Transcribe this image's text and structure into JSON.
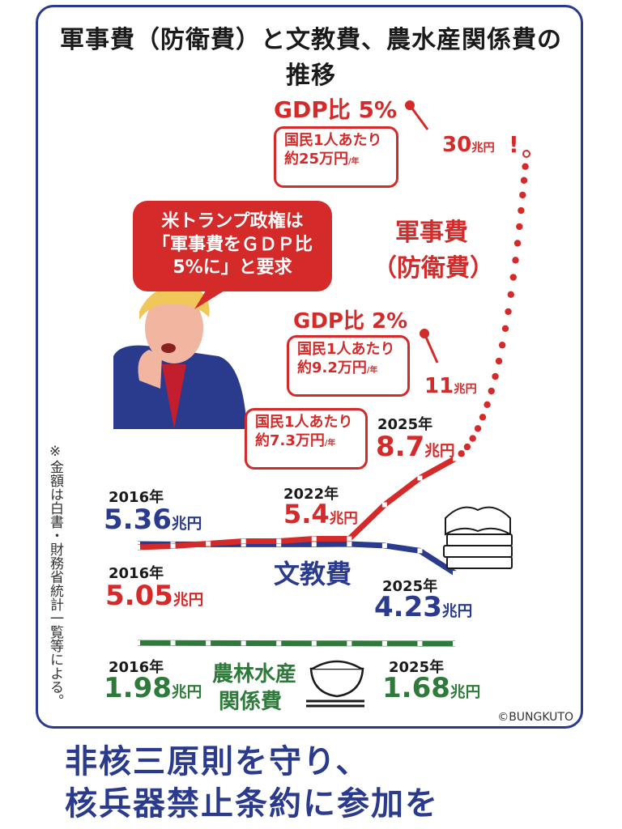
{
  "title": "軍事費（防衛費）と文教費、農水産関係費の推移",
  "note": "※金額は白書・財務省統計一覧等による。",
  "credit": "©BUNGKUTO",
  "slogan": [
    "非核三原則を守り、",
    "核兵器禁止条約に参加を"
  ],
  "speech_bubble": [
    "米トランプ政権は",
    "「軍事費をＧＤＰ比",
    "5%に」と要求"
  ],
  "colors": {
    "military": "#d42a2a",
    "education": "#2a3a8c",
    "agriculture": "#2e7a3a",
    "frame": "#2a3a8c"
  },
  "icons": [
    "trump-caricature-icon",
    "books-icon",
    "rice-bowl-icon",
    "chopsticks-icon"
  ],
  "chart_data": {
    "type": "line",
    "unit": "兆円",
    "series": [
      {
        "name": "軍事費（防衛費）",
        "x": [
          "2016",
          "2017",
          "2018",
          "2019",
          "2020",
          "2021",
          "2022",
          "2023",
          "2024",
          "2025"
        ],
        "values": [
          5.05,
          5.1,
          5.2,
          5.3,
          5.3,
          5.4,
          5.4,
          6.8,
          7.9,
          8.7
        ],
        "projection": [
          {
            "label": "GDP比 2%",
            "value": 11
          },
          {
            "label": "GDP比 5%",
            "value": 30
          }
        ]
      },
      {
        "name": "文教費",
        "x": [
          "2016",
          "2017",
          "2018",
          "2019",
          "2020",
          "2021",
          "2022",
          "2023",
          "2024",
          "2025"
        ],
        "values": [
          5.36,
          5.35,
          5.35,
          5.35,
          5.35,
          5.35,
          5.36,
          5.3,
          5.1,
          4.23
        ]
      },
      {
        "name": "農林水産関係費",
        "x": [
          "2016",
          "2017",
          "2018",
          "2019",
          "2020",
          "2021",
          "2022",
          "2023",
          "2024",
          "2025"
        ],
        "values": [
          1.98,
          1.95,
          1.9,
          1.85,
          1.8,
          1.78,
          1.75,
          1.72,
          1.7,
          1.68
        ]
      }
    ],
    "labels": {
      "mil_2016_year": "2016年",
      "mil_2016_value": "5.05",
      "mil_2022_year": "2022年",
      "mil_2022_value": "5.4",
      "mil_2025_year": "2025年",
      "mil_2025_value": "8.7",
      "mil_2pct": "GDP比 2%",
      "mil_2pct_value": "11",
      "mil_5pct": "GDP比 5%",
      "mil_5pct_value": "30",
      "mil_5pct_mark": "!",
      "mil_name_1": "軍事費",
      "mil_name_2": "（防衛費）",
      "edu_2016_year": "2016年",
      "edu_2016_value": "5.36",
      "edu_2025_year": "2025年",
      "edu_2025_value": "4.23",
      "edu_name": "文教費",
      "agr_2016_year": "2016年",
      "agr_2016_value": "1.98",
      "agr_2025_year": "2025年",
      "agr_2025_value": "1.68",
      "agr_name_1": "農林水産",
      "agr_name_2": "関係費",
      "unit": "兆円"
    },
    "per_capita": [
      {
        "line1": "国民1人あたり",
        "line2": "約7.3万円",
        "suffix": "/年"
      },
      {
        "line1": "国民1人あたり",
        "line2": "約9.2万円",
        "suffix": "/年"
      },
      {
        "line1": "国民1人あたり",
        "line2": "約25万円",
        "suffix": "/年"
      }
    ]
  }
}
